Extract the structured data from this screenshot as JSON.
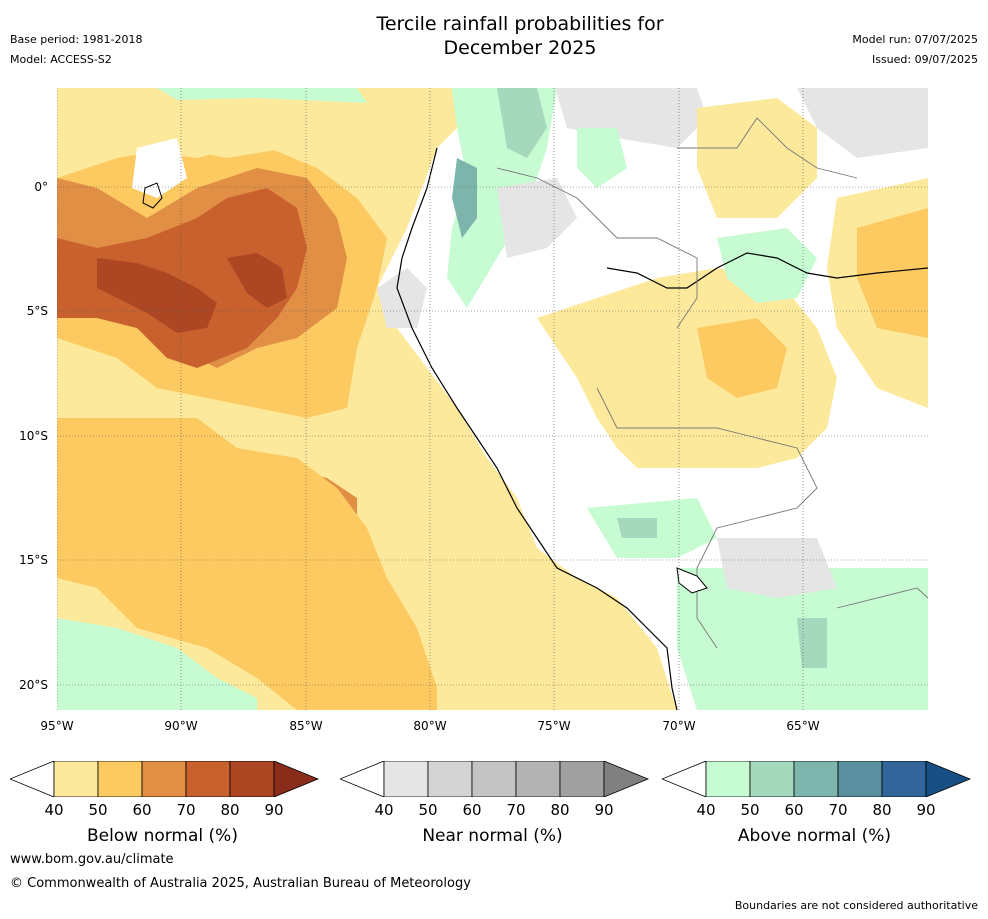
{
  "header": {
    "title_line1": "Tercile rainfall probabilities for",
    "title_line2": "December 2025",
    "base_period": "Base period: 1981-2018",
    "model": "Model: ACCESS-S2",
    "model_run": "Model run: 07/07/2025",
    "issued": "Issued: 09/07/2025"
  },
  "map": {
    "latitude_labels": [
      "0°",
      "5°S",
      "10°S",
      "15°S",
      "20°S"
    ],
    "longitude_labels": [
      "95°W",
      "90°W",
      "85°W",
      "80°W",
      "75°W",
      "70°W",
      "65°W"
    ]
  },
  "legend": {
    "below": {
      "label": "Below normal (%)",
      "ticks": [
        "40",
        "50",
        "60",
        "70",
        "80",
        "90"
      ],
      "colors": [
        "#fde99b",
        "#fdca62",
        "#e08f45",
        "#c9612e",
        "#ad4623",
        "#8a2c1a"
      ]
    },
    "near": {
      "label": "Near normal (%)",
      "ticks": [
        "40",
        "50",
        "60",
        "70",
        "80",
        "90"
      ],
      "colors": [
        "#e5e5e5",
        "#d4d4d4",
        "#c4c4c4",
        "#b3b3b3",
        "#a0a0a0",
        "#808080"
      ]
    },
    "above": {
      "label": "Above normal (%)",
      "ticks": [
        "40",
        "50",
        "60",
        "70",
        "80",
        "90"
      ],
      "colors": [
        "#c7fbd2",
        "#a5d8bc",
        "#7db5ad",
        "#5a8fa0",
        "#32659a",
        "#174f85"
      ]
    }
  },
  "footer": {
    "url": "www.bom.gov.au/climate",
    "copyright": "© Commonwealth of Australia 2025, Australian Bureau of Meteorology",
    "note": "Boundaries are not considered authoritative"
  }
}
